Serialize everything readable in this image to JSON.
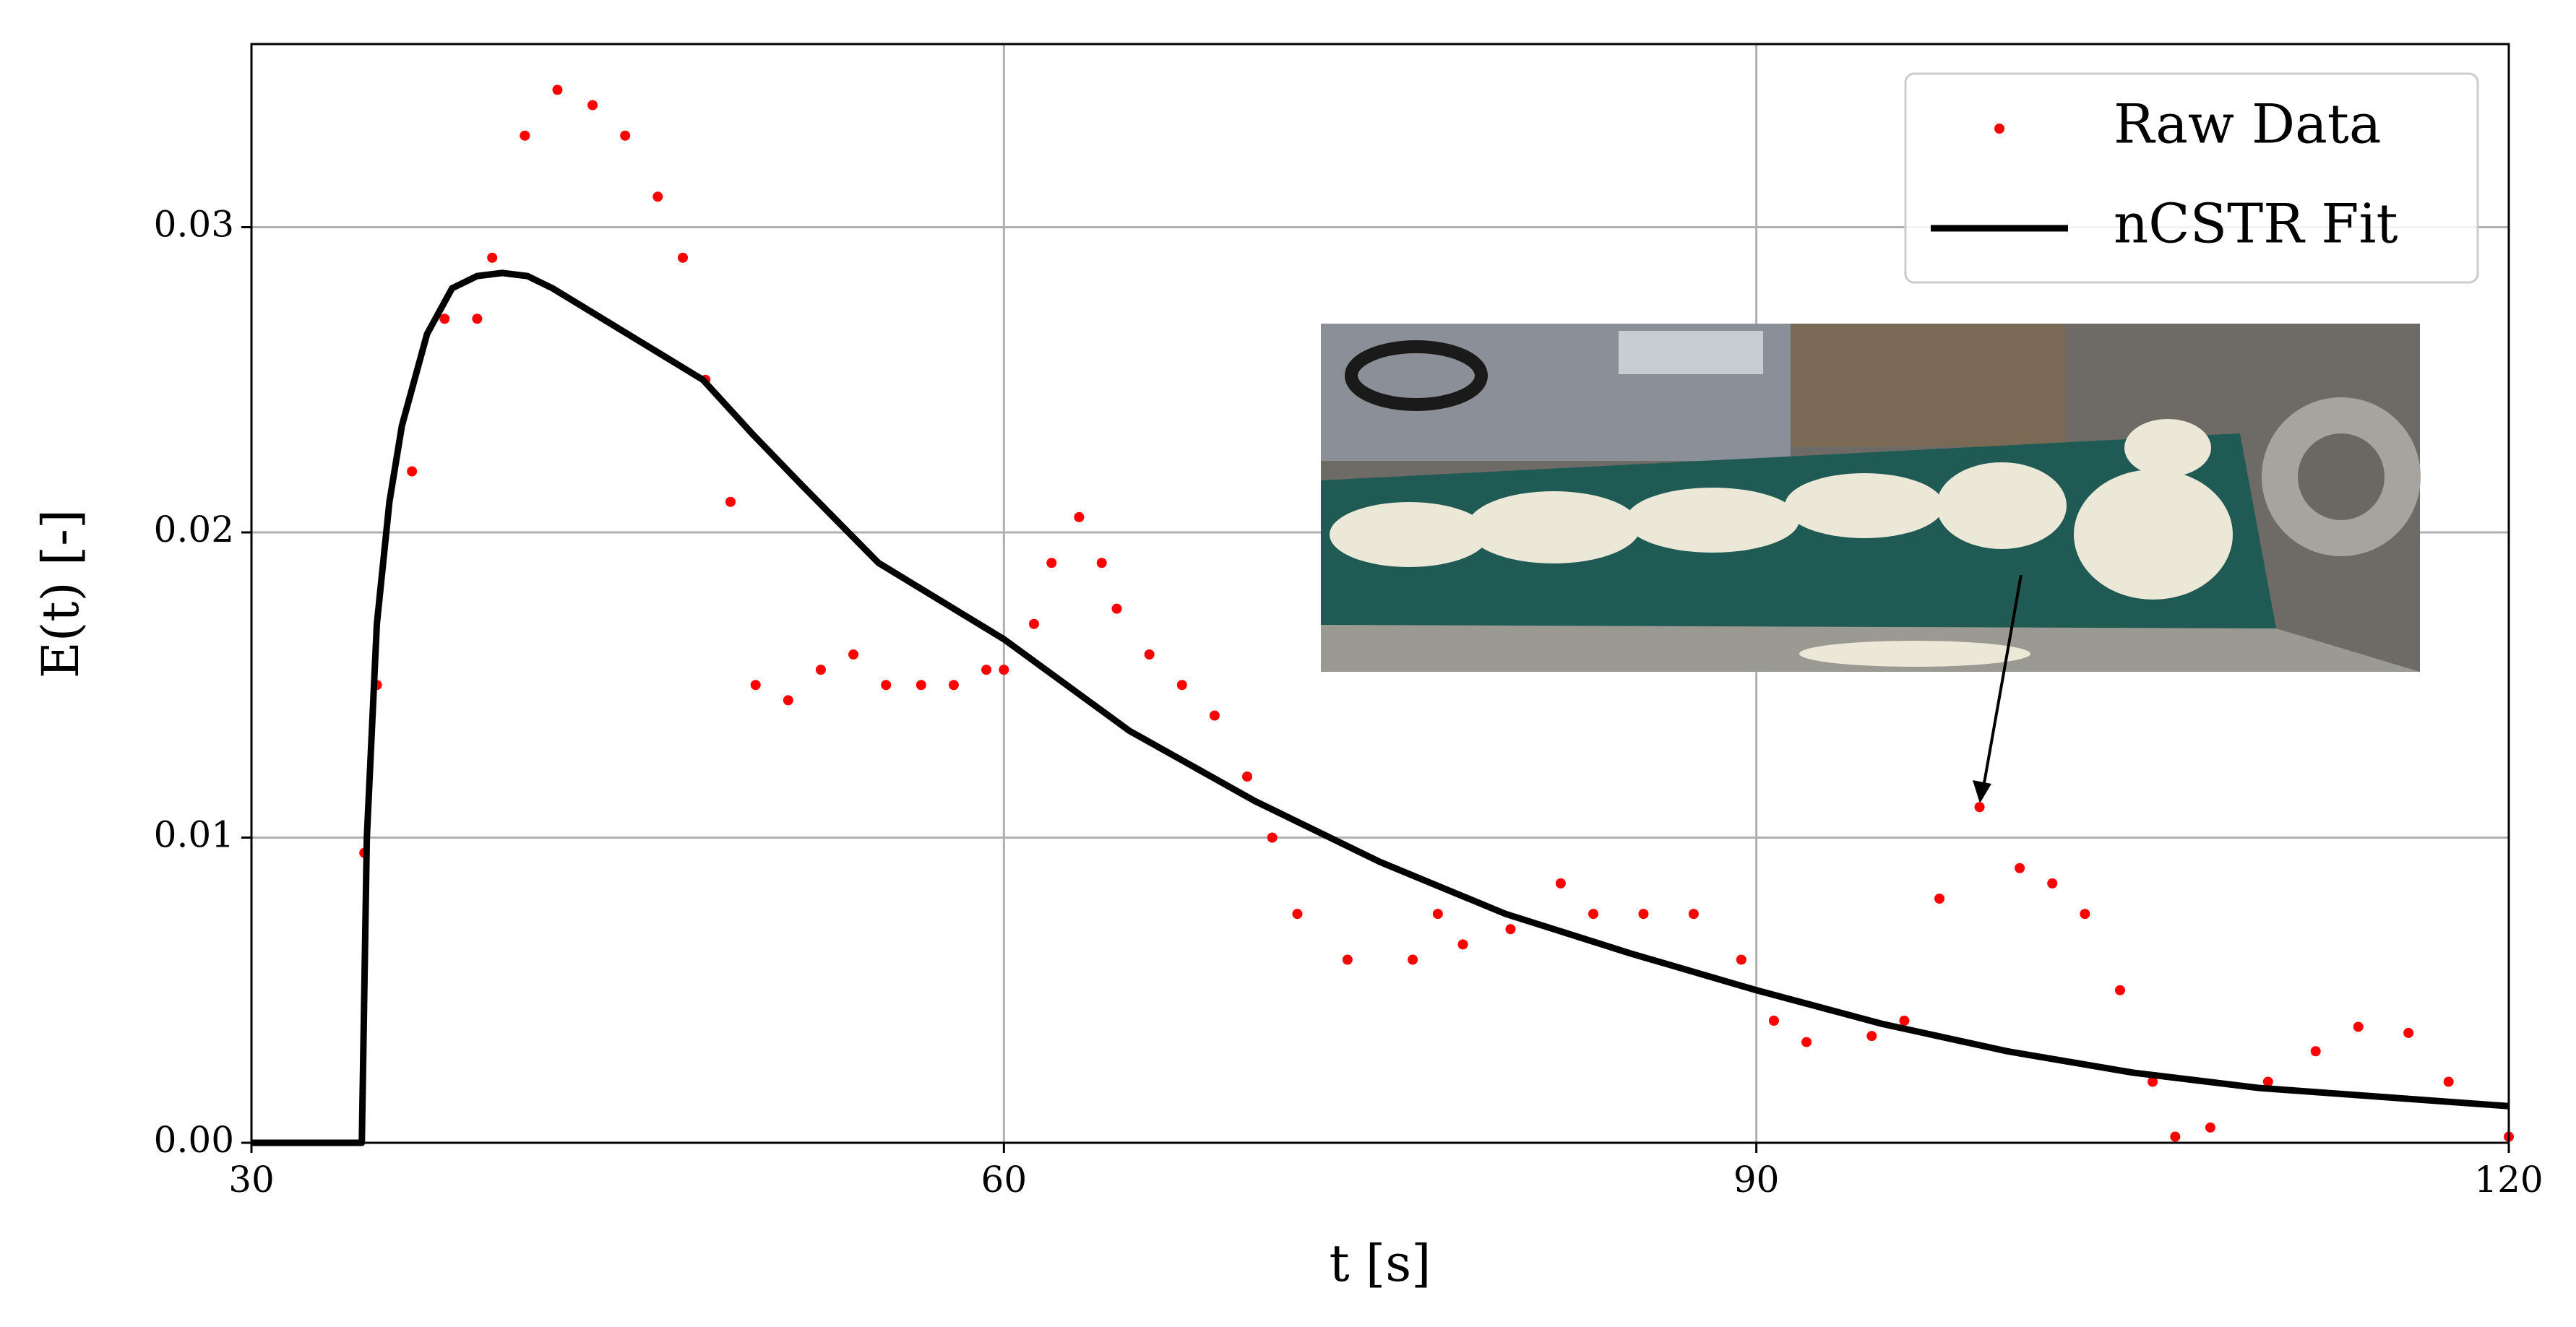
{
  "chart_data": {
    "type": "scatter",
    "xlabel": "t [s]",
    "ylabel": "E(t) [-]",
    "xlim": [
      30,
      120
    ],
    "xticks": [
      30,
      60,
      90,
      120
    ],
    "ylim": [
      0,
      0.036
    ],
    "yticks": [
      {
        "value": 0,
        "label": "0.00"
      },
      0.01,
      0.02,
      0.03
    ],
    "grid": true,
    "legend": "upper right",
    "series": [
      {
        "name": "Raw Data",
        "kind": "scatter",
        "color": "#ff0000",
        "x": [
          34.5,
          35,
          36.4,
          37.7,
          39,
          39.6,
          40.9,
          42.2,
          43.6,
          44.9,
          46.2,
          47.2,
          48.1,
          49.1,
          50.1,
          51.4,
          52.7,
          54,
          55.3,
          56.7,
          58,
          59.3,
          60,
          61.2,
          61.9,
          63,
          63.9,
          64.5,
          65.8,
          67.1,
          68.4,
          69.7,
          70.7,
          71.7,
          73.7,
          76.3,
          77.3,
          78.3,
          80.2,
          82.2,
          83.5,
          85.5,
          87.5,
          89.4,
          90.7,
          92,
          94.6,
          95.9,
          97.3,
          98.9,
          100.5,
          101.8,
          103.1,
          104.5,
          105.8,
          106.7,
          108.1,
          110.4,
          112.3,
          114,
          116,
          117.6,
          120
        ],
        "values": [
          0.0095,
          0.015,
          0.022,
          0.027,
          0.027,
          0.029,
          0.033,
          0.0345,
          0.034,
          0.033,
          0.031,
          0.029,
          0.025,
          0.021,
          0.015,
          0.0145,
          0.0155,
          0.016,
          0.015,
          0.015,
          0.015,
          0.0155,
          0.0155,
          0.017,
          0.019,
          0.0205,
          0.019,
          0.0175,
          0.016,
          0.015,
          0.014,
          0.012,
          0.01,
          0.0075,
          0.006,
          0.006,
          0.0075,
          0.0065,
          0.007,
          0.0085,
          0.0075,
          0.0075,
          0.0075,
          0.006,
          0.004,
          0.0033,
          0.0035,
          0.004,
          0.008,
          0.011,
          0.009,
          0.0085,
          0.0075,
          0.005,
          0.002,
          0.0002,
          0.0005,
          0.002,
          0.003,
          0.0038,
          0.0036,
          0.002,
          0.0002
        ]
      },
      {
        "name": "nCSTR Fit",
        "kind": "line",
        "color": "#000000",
        "x": [
          30,
          34.4,
          34.6,
          35,
          35.5,
          36,
          37,
          38,
          39,
          40,
          41,
          42,
          44,
          46,
          48,
          50,
          52,
          55,
          60,
          65,
          70,
          75,
          80,
          85,
          90,
          95,
          100,
          105,
          110,
          115,
          120
        ],
        "values": [
          0,
          0,
          0.01,
          0.017,
          0.021,
          0.0235,
          0.0265,
          0.028,
          0.0284,
          0.0285,
          0.0284,
          0.028,
          0.027,
          0.026,
          0.025,
          0.0232,
          0.0215,
          0.019,
          0.0165,
          0.0135,
          0.0112,
          0.0092,
          0.0075,
          0.0062,
          0.005,
          0.0039,
          0.003,
          0.0023,
          0.0018,
          0.0015,
          0.0012
        ]
      }
    ]
  }
}
